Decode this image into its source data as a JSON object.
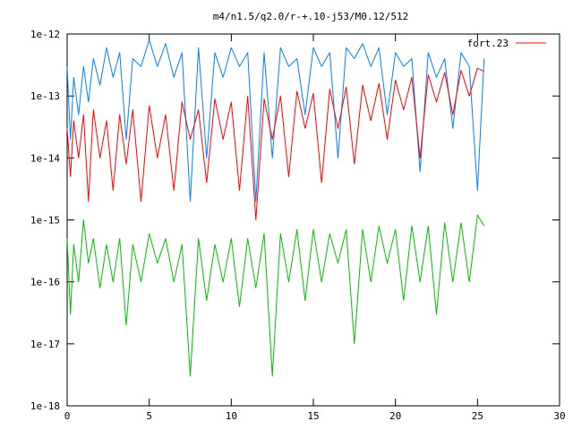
{
  "chart_data": {
    "type": "line",
    "title": "m4/n1.5/q2.0/r-+.10-j53/M0.12/512",
    "xlabel": "",
    "ylabel": "",
    "xlim": [
      0,
      30
    ],
    "ylim": [
      1e-18,
      1e-12
    ],
    "yscale": "log",
    "grid": false,
    "legend_position": "top-right",
    "x_ticks": [
      0,
      5,
      10,
      15,
      20,
      25,
      30
    ],
    "x_tick_labels": [
      "0",
      "5",
      "10",
      "15",
      "20",
      "25",
      "30"
    ],
    "y_ticks": [
      1e-18,
      1e-17,
      1e-16,
      1e-15,
      1e-14,
      1e-13,
      1e-12
    ],
    "y_tick_labels": [
      "1e-18",
      "1e-17",
      "1e-16",
      "1e-15",
      "1e-14",
      "1e-13",
      "1e-12"
    ],
    "series": [
      {
        "name": "",
        "color": "#0080ff",
        "x": [
          0,
          0.2,
          0.4,
          0.7,
          1.0,
          1.3,
          1.6,
          2.0,
          2.4,
          2.8,
          3.2,
          3.6,
          4.0,
          4.5,
          5.0,
          5.5,
          6.0,
          6.5,
          7.0,
          7.5,
          8.0,
          8.5,
          9.0,
          9.5,
          10.0,
          10.5,
          11.0,
          11.5,
          12.0,
          12.5,
          13.0,
          13.5,
          14.0,
          14.5,
          15.0,
          15.5,
          16.0,
          16.5,
          17.0,
          17.5,
          18.0,
          18.5,
          19.0,
          19.5,
          20.0,
          20.5,
          21.0,
          21.5,
          22.0,
          22.5,
          23.0,
          23.5,
          24.0,
          24.5,
          25.0,
          25.4
        ],
        "y": [
          3e-13,
          2e-14,
          2e-13,
          5e-14,
          3e-13,
          8e-14,
          4e-13,
          1.5e-13,
          6e-13,
          2e-13,
          5e-13,
          2e-14,
          4e-13,
          3e-13,
          8e-13,
          3e-13,
          7e-13,
          2e-13,
          5e-13,
          2e-15,
          6e-13,
          1e-14,
          5e-13,
          2e-13,
          6e-13,
          3e-13,
          5e-13,
          2e-15,
          5e-13,
          1e-14,
          6e-13,
          3e-13,
          4e-13,
          5e-14,
          6e-13,
          3e-13,
          5e-13,
          1e-14,
          6e-13,
          4e-13,
          7e-13,
          3e-13,
          6e-13,
          5e-14,
          5e-13,
          3e-13,
          4e-13,
          6e-15,
          5e-13,
          2e-13,
          4e-13,
          3e-14,
          5e-13,
          3e-13,
          3e-15,
          4e-13
        ]
      },
      {
        "name": "fort.23",
        "color": "#ff0000",
        "x": [
          0,
          0.2,
          0.4,
          0.7,
          1.0,
          1.3,
          1.6,
          2.0,
          2.4,
          2.8,
          3.2,
          3.6,
          4.0,
          4.5,
          5.0,
          5.5,
          6.0,
          6.5,
          7.0,
          7.5,
          8.0,
          8.5,
          9.0,
          9.5,
          10.0,
          10.5,
          11.0,
          11.5,
          12.0,
          12.5,
          13.0,
          13.5,
          14.0,
          14.5,
          15.0,
          15.5,
          16.0,
          16.5,
          17.0,
          17.5,
          18.0,
          18.5,
          19.0,
          19.5,
          20.0,
          20.5,
          21.0,
          21.5,
          22.0,
          22.5,
          23.0,
          23.5,
          24.0,
          24.5,
          25.0,
          25.4
        ],
        "y": [
          3e-14,
          5e-15,
          4e-14,
          1e-14,
          5e-14,
          2e-15,
          6e-14,
          1e-14,
          4e-14,
          3e-15,
          5e-14,
          8e-15,
          6e-14,
          2e-15,
          7e-14,
          1e-14,
          5e-14,
          3e-15,
          8e-14,
          2e-14,
          6e-14,
          4e-15,
          9e-14,
          2e-14,
          8e-14,
          3e-15,
          1e-13,
          1e-15,
          9e-14,
          2e-14,
          1e-13,
          5e-15,
          1.2e-13,
          3e-14,
          1.1e-13,
          4e-15,
          1.3e-13,
          3e-14,
          1.4e-13,
          8e-15,
          1.5e-13,
          4e-14,
          1.6e-13,
          2e-14,
          1.8e-13,
          6e-14,
          2e-13,
          1e-14,
          2.2e-13,
          8e-14,
          2.4e-13,
          5e-14,
          2.6e-13,
          1e-13,
          2.8e-13,
          2.5e-13
        ]
      },
      {
        "name": "",
        "color": "#00c000",
        "x": [
          0,
          0.2,
          0.4,
          0.7,
          1.0,
          1.3,
          1.6,
          2.0,
          2.4,
          2.8,
          3.2,
          3.6,
          4.0,
          4.5,
          5.0,
          5.5,
          6.0,
          6.5,
          7.0,
          7.5,
          8.0,
          8.5,
          9.0,
          9.5,
          10.0,
          10.5,
          11.0,
          11.5,
          12.0,
          12.5,
          13.0,
          13.5,
          14.0,
          14.5,
          15.0,
          15.5,
          16.0,
          16.5,
          17.0,
          17.5,
          18.0,
          18.5,
          19.0,
          19.5,
          20.0,
          20.5,
          21.0,
          21.5,
          22.0,
          22.5,
          23.0,
          23.5,
          24.0,
          24.5,
          25.0,
          25.4
        ],
        "y": [
          5e-16,
          3e-17,
          4e-16,
          1e-16,
          1e-15,
          2e-16,
          5e-16,
          8e-17,
          4e-16,
          1e-16,
          5e-16,
          2e-17,
          4e-16,
          1e-16,
          6e-16,
          2e-16,
          5e-16,
          1e-16,
          4e-16,
          3e-18,
          5e-16,
          5e-17,
          4e-16,
          1e-16,
          5e-16,
          4e-17,
          5e-16,
          8e-17,
          6e-16,
          3e-18,
          6e-16,
          1e-16,
          7e-16,
          5e-17,
          7e-16,
          1e-16,
          6e-16,
          2e-16,
          7e-16,
          1e-17,
          7e-16,
          1e-16,
          8e-16,
          2e-16,
          7e-16,
          5e-17,
          8e-16,
          1e-16,
          8e-16,
          3e-17,
          9e-16,
          1e-16,
          9e-16,
          1e-16,
          1.2e-15,
          8e-16
        ]
      }
    ]
  }
}
